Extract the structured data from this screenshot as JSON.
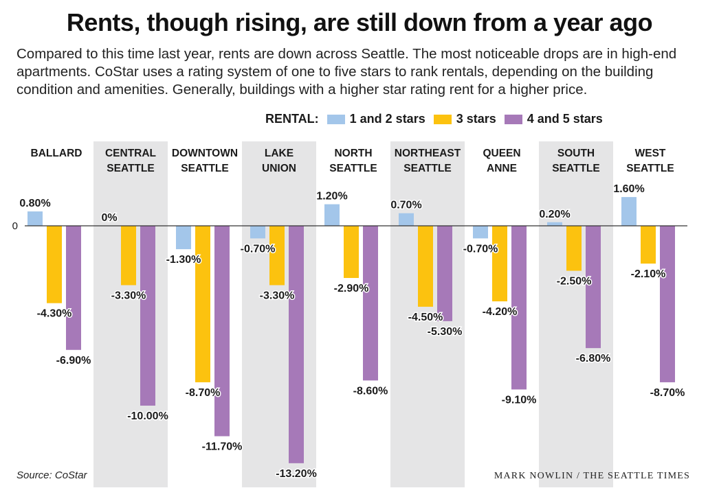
{
  "header": {
    "title": "Rents, though rising, are still down from a year ago",
    "subtitle": "Compared to this time last year, rents are down across Seattle. The most noticeable drops are in high-end apartments. CoStar uses a rating system of one to five stars to rank rentals, depending on the building condition and amenities. Generally, buildings with a higher star rating rent for a higher price."
  },
  "legend": {
    "label": "RENTAL:",
    "items": [
      {
        "label": "1 and 2 stars",
        "color": "#a3c6ea"
      },
      {
        "label": "3 stars",
        "color": "#fcc20f"
      },
      {
        "label": "4 and 5 stars",
        "color": "#a679b8"
      }
    ]
  },
  "chart_data": {
    "type": "bar",
    "categories": [
      [
        "BALLARD"
      ],
      [
        "CENTRAL",
        "SEATTLE"
      ],
      [
        "DOWNTOWN",
        "SEATTLE"
      ],
      [
        "LAKE",
        "UNION"
      ],
      [
        "NORTH",
        "SEATTLE"
      ],
      [
        "NORTHEAST",
        "SEATTLE"
      ],
      [
        "QUEEN",
        "ANNE"
      ],
      [
        "SOUTH",
        "SEATTLE"
      ],
      [
        "WEST",
        "SEATTLE"
      ]
    ],
    "series": [
      {
        "name": "1 and 2 stars",
        "color": "#a3c6ea",
        "values": [
          0.8,
          0,
          -1.3,
          -0.7,
          1.2,
          0.7,
          -0.7,
          0.2,
          1.6
        ],
        "labels": [
          "0.80%",
          "0%",
          "-1.30%",
          "-0.70%",
          "1.20%",
          "0.70%",
          "-0.70%",
          "0.20%",
          "1.60%"
        ]
      },
      {
        "name": "3 stars",
        "color": "#fcc20f",
        "values": [
          -4.3,
          -3.3,
          -8.7,
          -3.3,
          -2.9,
          -4.5,
          -4.2,
          -2.5,
          -2.1
        ],
        "labels": [
          "-4.30%",
          "-3.30%",
          "-8.70%",
          "-3.30%",
          "-2.90%",
          "-4.50%",
          "-4.20%",
          "-2.50%",
          "-2.10%"
        ]
      },
      {
        "name": "4 and 5 stars",
        "color": "#a679b8",
        "values": [
          -6.9,
          -10.0,
          -11.7,
          -13.2,
          -8.6,
          -5.3,
          -9.1,
          -6.8,
          -8.7
        ],
        "labels": [
          "-6.90%",
          "-10.00%",
          "-11.70%",
          "-13.20%",
          "-8.60%",
          "-5.30%",
          "-9.10%",
          "-6.80%",
          "-8.70%"
        ]
      }
    ],
    "zero_label": "0",
    "ylim": [
      -13.2,
      1.6
    ],
    "shaded_columns": [
      1,
      3,
      5,
      7
    ],
    "shade_color": "#e5e5e6"
  },
  "footer": {
    "source": "Source: CoStar",
    "credit": "MARK NOWLIN / THE SEATTLE TIMES"
  }
}
